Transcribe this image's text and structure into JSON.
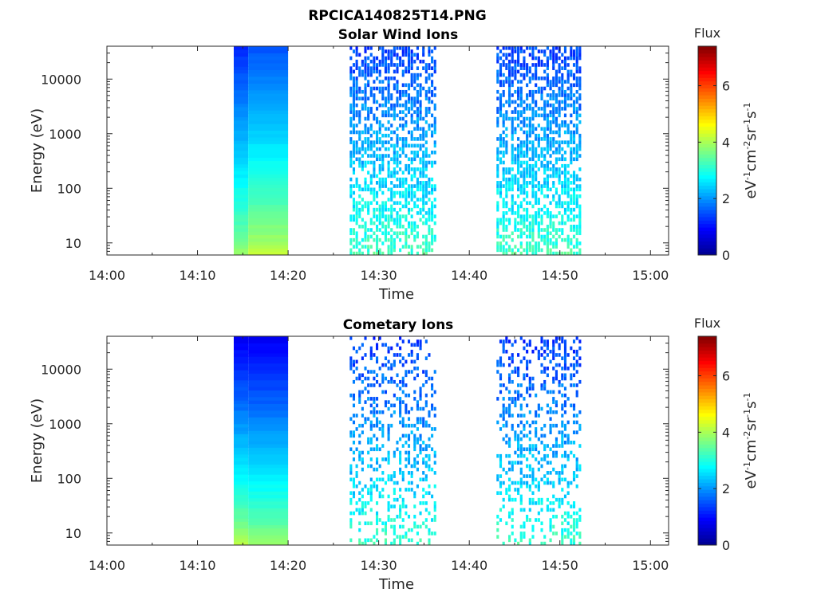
{
  "figure_title": "RPCICA140825T14.PNG",
  "colors": {
    "colormap": [
      "#00008f",
      "#0000ff",
      "#0080ff",
      "#00ffff",
      "#80ff80",
      "#ffff00",
      "#ff8000",
      "#ff0000",
      "#800000"
    ]
  },
  "colorbar": {
    "title": "Flux",
    "label_parts": [
      "eV",
      "-1",
      "cm",
      "-2",
      "sr",
      "-1",
      "s",
      "-1"
    ],
    "ticks": [
      "0",
      "2",
      "4",
      "6"
    ],
    "range": [
      0,
      7.4
    ]
  },
  "chart_data": [
    {
      "type": "heatmap",
      "title": "Solar Wind Ions",
      "xlabel": "Time",
      "ylabel": "Energy (eV)",
      "x_ticks": [
        "14:00",
        "14:10",
        "14:20",
        "14:30",
        "14:40",
        "14:50",
        "15:00"
      ],
      "x_range_minutes": [
        0,
        62
      ],
      "y_ticks": [
        "10",
        "100",
        "1000",
        "10000"
      ],
      "y_scale": "log",
      "y_range_eV": [
        6,
        40000
      ],
      "blocks": [
        {
          "t_start": "14:14",
          "t_end": "14:15.6",
          "flux_low": 3.9,
          "flux_high": 1.2,
          "density": 1.0
        },
        {
          "t_start": "14:15.6",
          "t_end": "14:20",
          "flux_low": 4.2,
          "flux_high": 1.5,
          "density": 1.0
        },
        {
          "t_start": "14:26.8",
          "t_end": "14:36.4",
          "flux_low": 3.3,
          "flux_high": 1.4,
          "density": 0.55
        },
        {
          "t_start": "14:43.0",
          "t_end": "14:52.4",
          "flux_low": 3.3,
          "flux_high": 1.4,
          "density": 0.6
        }
      ]
    },
    {
      "type": "heatmap",
      "title": "Cometary Ions",
      "xlabel": "Time",
      "ylabel": "Energy (eV)",
      "x_ticks": [
        "14:00",
        "14:10",
        "14:20",
        "14:30",
        "14:40",
        "14:50",
        "15:00"
      ],
      "x_range_minutes": [
        0,
        62
      ],
      "y_ticks": [
        "10",
        "100",
        "1000",
        "10000"
      ],
      "y_scale": "log",
      "y_range_eV": [
        6,
        40000
      ],
      "blocks": [
        {
          "t_start": "14:14",
          "t_end": "14:15.6",
          "flux_low": 4.1,
          "flux_high": 0.8,
          "density": 1.0
        },
        {
          "t_start": "14:15.6",
          "t_end": "14:20",
          "flux_low": 3.9,
          "flux_high": 0.8,
          "density": 1.0
        },
        {
          "t_start": "14:26.8",
          "t_end": "14:36.4",
          "flux_low": 3.2,
          "flux_high": 1.3,
          "density": 0.3
        },
        {
          "t_start": "14:43.0",
          "t_end": "14:52.4",
          "flux_low": 3.2,
          "flux_high": 1.3,
          "density": 0.32
        }
      ]
    }
  ]
}
